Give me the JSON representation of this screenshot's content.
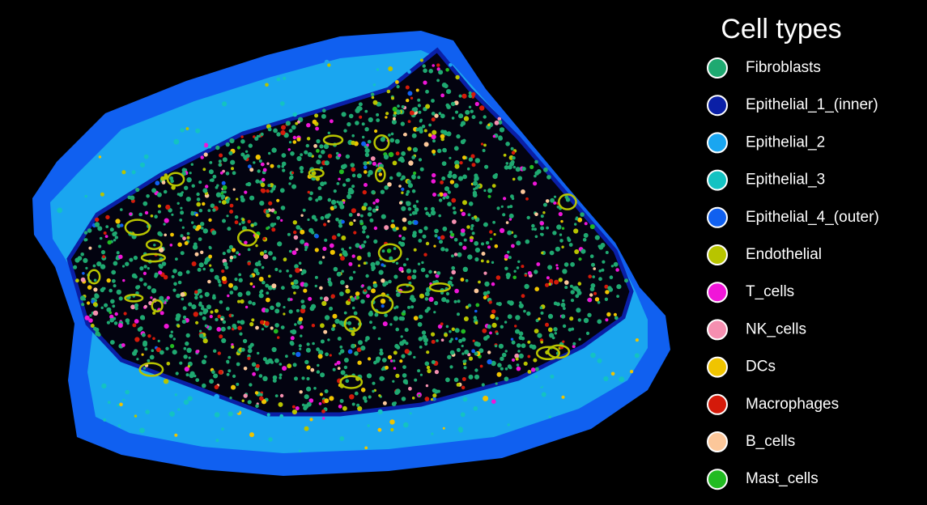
{
  "legend": {
    "title": "Cell types",
    "items": [
      {
        "label": "Fibroblasts",
        "color": "#1fa971"
      },
      {
        "label": "Epithelial_1_(inner)",
        "color": "#0a1fa6"
      },
      {
        "label": "Epithelial_2",
        "color": "#1aa6f0"
      },
      {
        "label": "Epithelial_3",
        "color": "#14c2c2"
      },
      {
        "label": "Epithelial_4_(outer)",
        "color": "#1060f0"
      },
      {
        "label": "Endothelial",
        "color": "#b8c400"
      },
      {
        "label": "T_cells",
        "color": "#f016d8"
      },
      {
        "label": "NK_cells",
        "color": "#f58fb0"
      },
      {
        "label": "DCs",
        "color": "#f0c400"
      },
      {
        "label": "Macrophages",
        "color": "#d41a0a"
      },
      {
        "label": "B_cells",
        "color": "#fcc79a"
      },
      {
        "label": "Mast_cells",
        "color": "#22bb22"
      }
    ]
  }
}
